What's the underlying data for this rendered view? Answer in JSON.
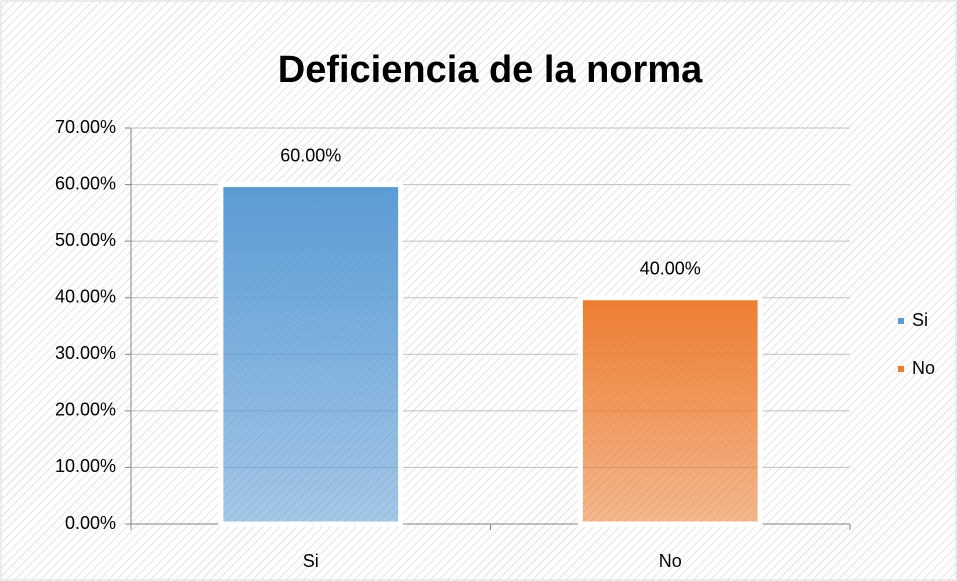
{
  "chart_data": {
    "type": "bar",
    "title": "Deficiencia de la norma",
    "categories": [
      "Si",
      "No"
    ],
    "values": [
      60,
      40
    ],
    "value_labels": [
      "60.00%",
      "40.00%"
    ],
    "colors": [
      "#5b9bd5",
      "#ed7d31"
    ],
    "ylim": [
      0,
      70
    ],
    "yticks": [
      {
        "value": 0,
        "label": "0.00%"
      },
      {
        "value": 10,
        "label": "10.00%"
      },
      {
        "value": 20,
        "label": "20.00%"
      },
      {
        "value": 30,
        "label": "30.00%"
      },
      {
        "value": 40,
        "label": "40.00%"
      },
      {
        "value": 50,
        "label": "50.00%"
      },
      {
        "value": 60,
        "label": "60.00%"
      },
      {
        "value": 70,
        "label": "70.00%"
      }
    ],
    "grid": true,
    "legend": "right"
  }
}
